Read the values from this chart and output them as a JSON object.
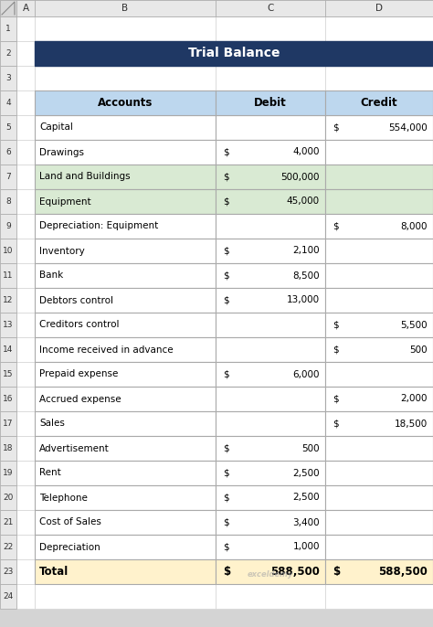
{
  "title": "Trial Balance",
  "title_bg": "#1F3864",
  "title_color": "#FFFFFF",
  "header_bg": "#BDD7EE",
  "header_text": [
    "Accounts",
    "Debit",
    "Credit"
  ],
  "green_bg": "#D9EAD3",
  "total_bg": "#FFF2CC",
  "white_bg": "#FFFFFF",
  "rows": [
    {
      "account": "Capital",
      "debit": "",
      "credit": "554,000",
      "bg": "#FFFFFF"
    },
    {
      "account": "Drawings",
      "debit": "4,000",
      "credit": "",
      "bg": "#FFFFFF"
    },
    {
      "account": "Land and Buildings",
      "debit": "500,000",
      "credit": "",
      "bg": "#D9EAD3"
    },
    {
      "account": "Equipment",
      "debit": "45,000",
      "credit": "",
      "bg": "#D9EAD3"
    },
    {
      "account": "Depreciation: Equipment",
      "debit": "",
      "credit": "8,000",
      "bg": "#FFFFFF"
    },
    {
      "account": "Inventory",
      "debit": "2,100",
      "credit": "",
      "bg": "#FFFFFF"
    },
    {
      "account": "Bank",
      "debit": "8,500",
      "credit": "",
      "bg": "#FFFFFF"
    },
    {
      "account": "Debtors control",
      "debit": "13,000",
      "credit": "",
      "bg": "#FFFFFF"
    },
    {
      "account": "Creditors control",
      "debit": "",
      "credit": "5,500",
      "bg": "#FFFFFF"
    },
    {
      "account": "Income received in advance",
      "debit": "",
      "credit": "500",
      "bg": "#FFFFFF"
    },
    {
      "account": "Prepaid expense",
      "debit": "6,000",
      "credit": "",
      "bg": "#FFFFFF"
    },
    {
      "account": "Accrued expense",
      "debit": "",
      "credit": "2,000",
      "bg": "#FFFFFF"
    },
    {
      "account": "Sales",
      "debit": "",
      "credit": "18,500",
      "bg": "#FFFFFF"
    },
    {
      "account": "Advertisement",
      "debit": "500",
      "credit": "",
      "bg": "#FFFFFF"
    },
    {
      "account": "Rent",
      "debit": "2,500",
      "credit": "",
      "bg": "#FFFFFF"
    },
    {
      "account": "Telephone",
      "debit": "2,500",
      "credit": "",
      "bg": "#FFFFFF"
    },
    {
      "account": "Cost of Sales",
      "debit": "3,400",
      "credit": "",
      "bg": "#FFFFFF"
    },
    {
      "account": "Depreciation",
      "debit": "1,000",
      "credit": "",
      "bg": "#FFFFFF"
    }
  ],
  "total_row": {
    "account": "Total",
    "debit": "588,500",
    "credit": "588,500"
  },
  "excel_bg": "#D4D4D4",
  "cell_bg": "#FFFFFF",
  "col_header_bg": "#E8E8E8",
  "row_header_bg": "#E8E8E8",
  "col_letters": [
    "A",
    "B",
    "C",
    "D"
  ],
  "row_numbers": [
    "1",
    "2",
    "3",
    "4",
    "5",
    "6",
    "7",
    "8",
    "9",
    "10",
    "11",
    "12",
    "13",
    "14",
    "15",
    "16",
    "17",
    "18",
    "19",
    "20",
    "21",
    "22",
    "23",
    "24"
  ],
  "figsize": [
    4.74,
    6.86
  ],
  "dpi": 100
}
